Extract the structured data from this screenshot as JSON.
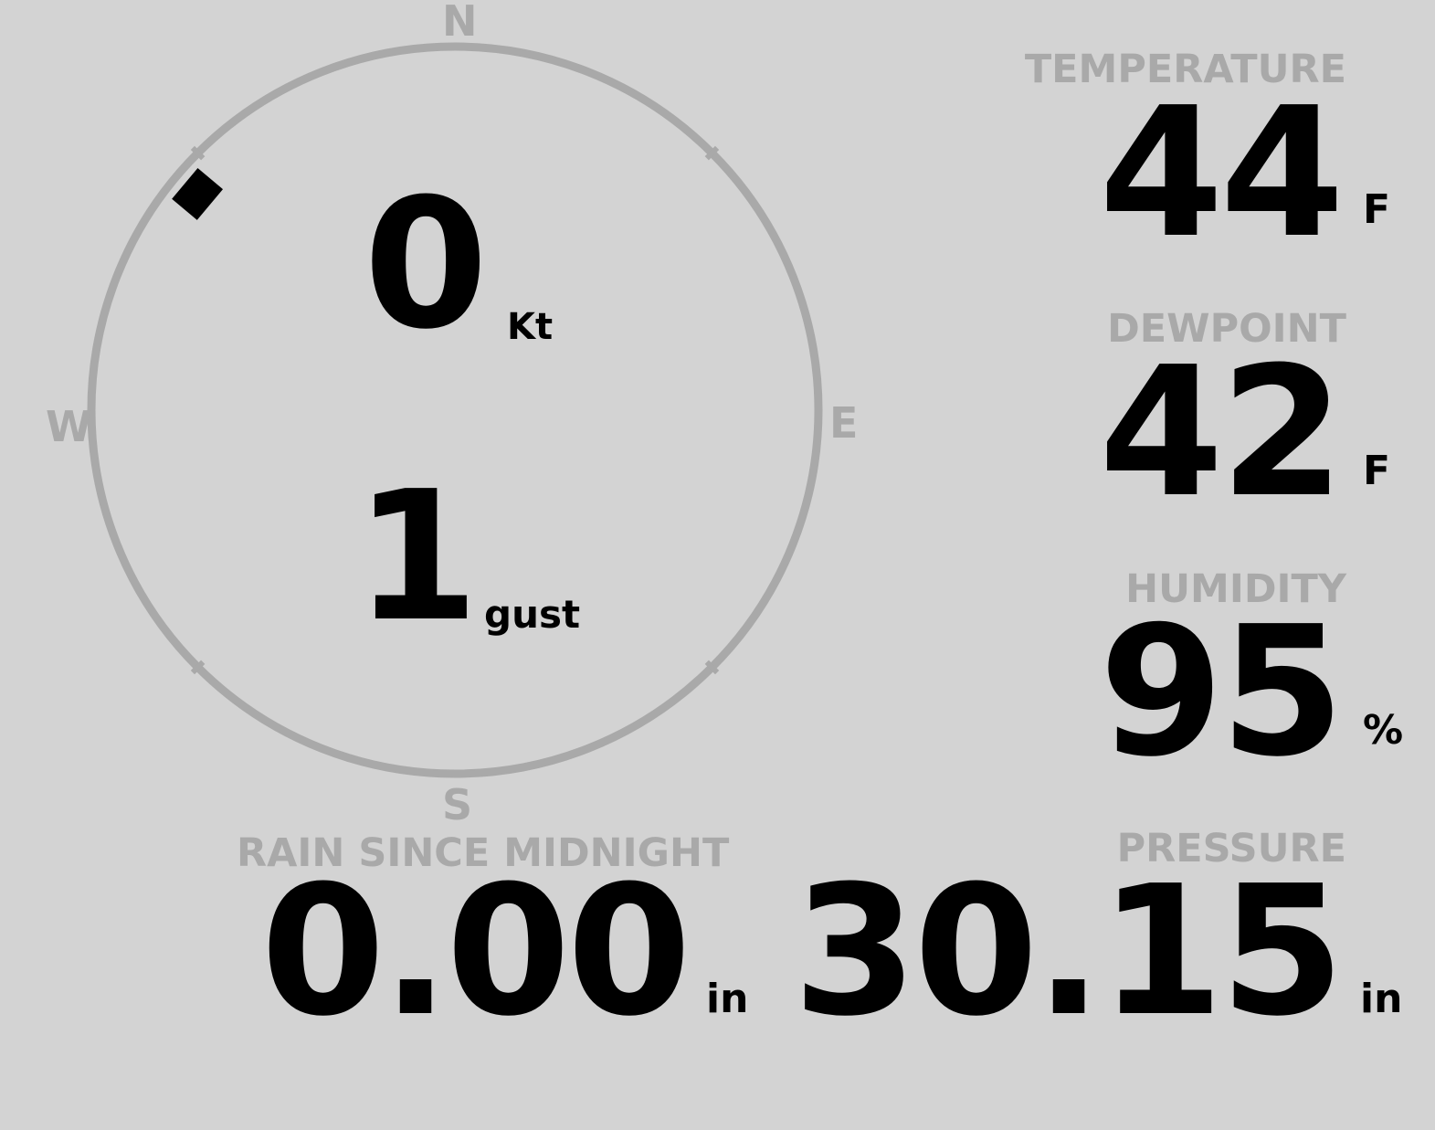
{
  "wind": {
    "compass": {
      "n": "N",
      "e": "E",
      "s": "S",
      "w": "W"
    },
    "speed": "0",
    "speed_unit": "Kt",
    "gust": "1",
    "gust_unit": "gust",
    "direction_deg": 310
  },
  "temperature": {
    "label": "TEMPERATURE",
    "value": "44",
    "unit": "F"
  },
  "dewpoint": {
    "label": "DEWPOINT",
    "value": "42",
    "unit": "F"
  },
  "humidity": {
    "label": "HUMIDITY",
    "value": "95",
    "unit": "%"
  },
  "pressure": {
    "label": "PRESSURE",
    "value": "30.15",
    "unit": "in"
  },
  "rain": {
    "label": "RAIN SINCE MIDNIGHT",
    "value": "0.00",
    "unit": "in"
  },
  "colors": {
    "background": "#d3d3d3",
    "label": "#a9a9a9",
    "value": "#000000",
    "ring": "#a9a9a9"
  }
}
